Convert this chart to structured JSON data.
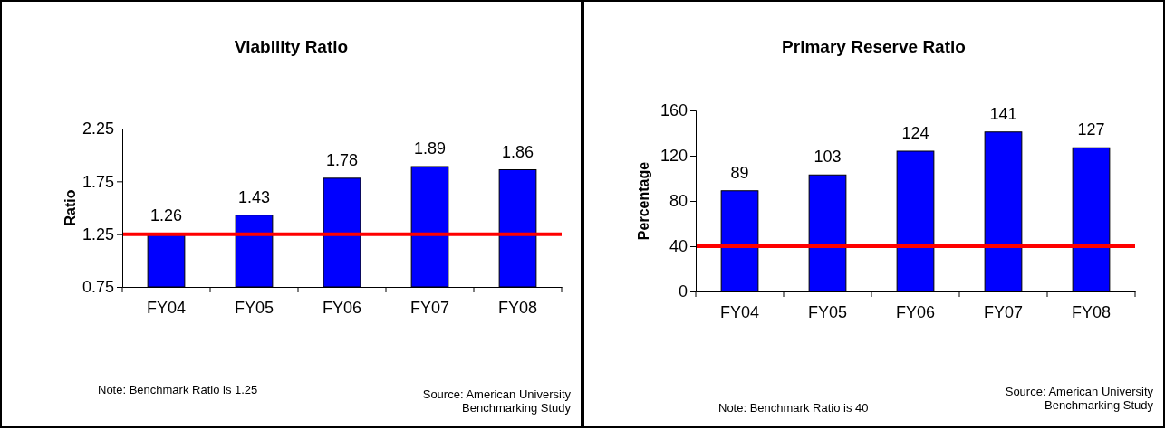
{
  "chart_data": [
    {
      "type": "bar",
      "title": "Viability Ratio",
      "ylabel": "Ratio",
      "categories": [
        "FY04",
        "FY05",
        "FY06",
        "FY07",
        "FY08"
      ],
      "values": [
        1.26,
        1.43,
        1.78,
        1.89,
        1.86
      ],
      "color": "#0000ff",
      "data_labels": true,
      "ylim": [
        0.75,
        2.25
      ],
      "yticks": [
        0.75,
        1.25,
        1.75,
        2.25
      ],
      "ref_lines": [
        {
          "axis": "y",
          "value": 1.25,
          "color": "#ff0000",
          "line_style": "solid"
        }
      ],
      "annotations": [
        "Note:  Benchmark Ratio is 1.25",
        "Source: American University Benchmarking Study"
      ]
    },
    {
      "type": "bar",
      "title": "Primary Reserve Ratio",
      "ylabel": "Percentage",
      "categories": [
        "FY04",
        "FY05",
        "FY06",
        "FY07",
        "FY08"
      ],
      "values": [
        89,
        103,
        124,
        141,
        127
      ],
      "color": "#0000ff",
      "data_labels": true,
      "ylim": [
        0,
        160
      ],
      "yticks": [
        0,
        40,
        80,
        120,
        160
      ],
      "ref_lines": [
        {
          "axis": "y",
          "value": 40,
          "color": "#ff0000",
          "line_style": "solid"
        }
      ],
      "annotations": [
        "Note: Benchmark Ratio is 40",
        "Source: American University Benchmarking Study"
      ]
    }
  ]
}
